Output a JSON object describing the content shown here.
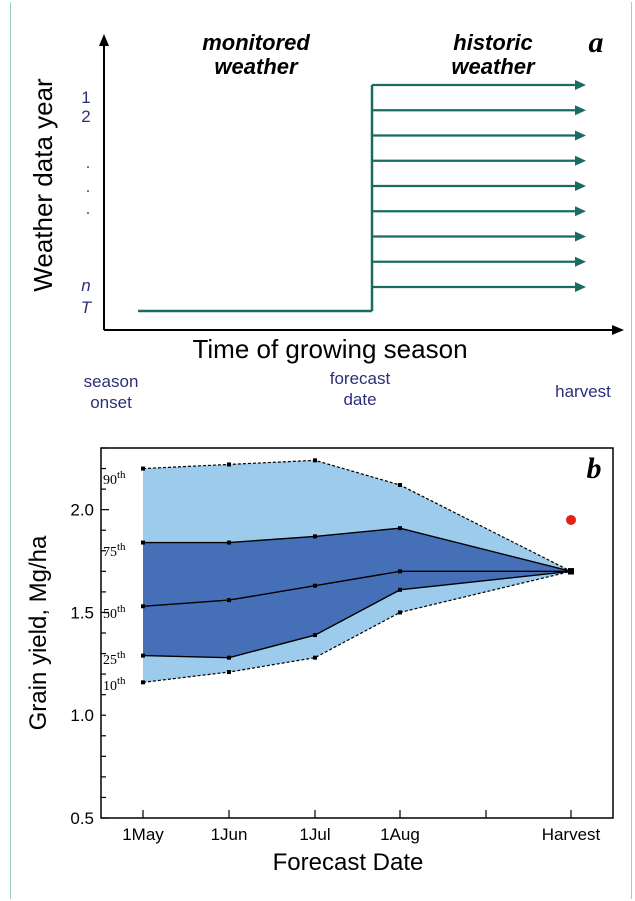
{
  "chart_data": [
    {
      "panel_letter": "a",
      "type": "diagram",
      "ylabel": "Weather data year",
      "xlabel": "Time of growing season",
      "region_labels": {
        "monitored_line1": "monitored",
        "monitored_line2": "weather",
        "historic_line1": "historic",
        "historic_line2": "weather"
      },
      "year_labels": {
        "first": "1",
        "second": "2",
        "dots": [
          ".",
          ".",
          "."
        ],
        "n": "n",
        "T": "T"
      },
      "time_labels": {
        "onset_line1": "season",
        "onset_line2": "onset",
        "forecast_line1": "forecast",
        "forecast_line2": "date",
        "harvest": "harvest"
      },
      "historic_arrow_count": 9,
      "colors": {
        "lines": "#1a6b60",
        "labels": "#2b2f7a"
      }
    },
    {
      "panel_letter": "b",
      "type": "area",
      "xlabel": "Forecast Date",
      "ylabel": "Grain yield,  Mg/ha",
      "categories": [
        "1May",
        "1Jun",
        "1Jul",
        "1Aug",
        "Harvest"
      ],
      "x": [
        0,
        1,
        2,
        3,
        5
      ],
      "ylim": [
        0.5,
        2.3
      ],
      "yticks": [
        "0.5",
        "1.0",
        "1.5",
        "2.0"
      ],
      "percentile_labels": [
        {
          "base": "90",
          "sup": "th"
        },
        {
          "base": "75",
          "sup": "th"
        },
        {
          "base": "50",
          "sup": "th"
        },
        {
          "base": "25",
          "sup": "th"
        },
        {
          "base": "10",
          "sup": "th"
        }
      ],
      "series": [
        {
          "name": "90th",
          "values": [
            2.2,
            2.22,
            2.24,
            2.12,
            1.7
          ]
        },
        {
          "name": "75th",
          "values": [
            1.84,
            1.84,
            1.87,
            1.91,
            1.7
          ]
        },
        {
          "name": "50th",
          "values": [
            1.53,
            1.56,
            1.63,
            1.7,
            1.7
          ]
        },
        {
          "name": "25th",
          "values": [
            1.29,
            1.28,
            1.39,
            1.61,
            1.7
          ]
        },
        {
          "name": "10th",
          "values": [
            1.16,
            1.21,
            1.28,
            1.5,
            1.7
          ]
        }
      ],
      "actual_yield": {
        "x": 5,
        "value": 1.95
      },
      "colors": {
        "outer_band": "#9ccbeb",
        "inner_band": "#4570b8",
        "actual_point": "#e2231a"
      }
    }
  ]
}
